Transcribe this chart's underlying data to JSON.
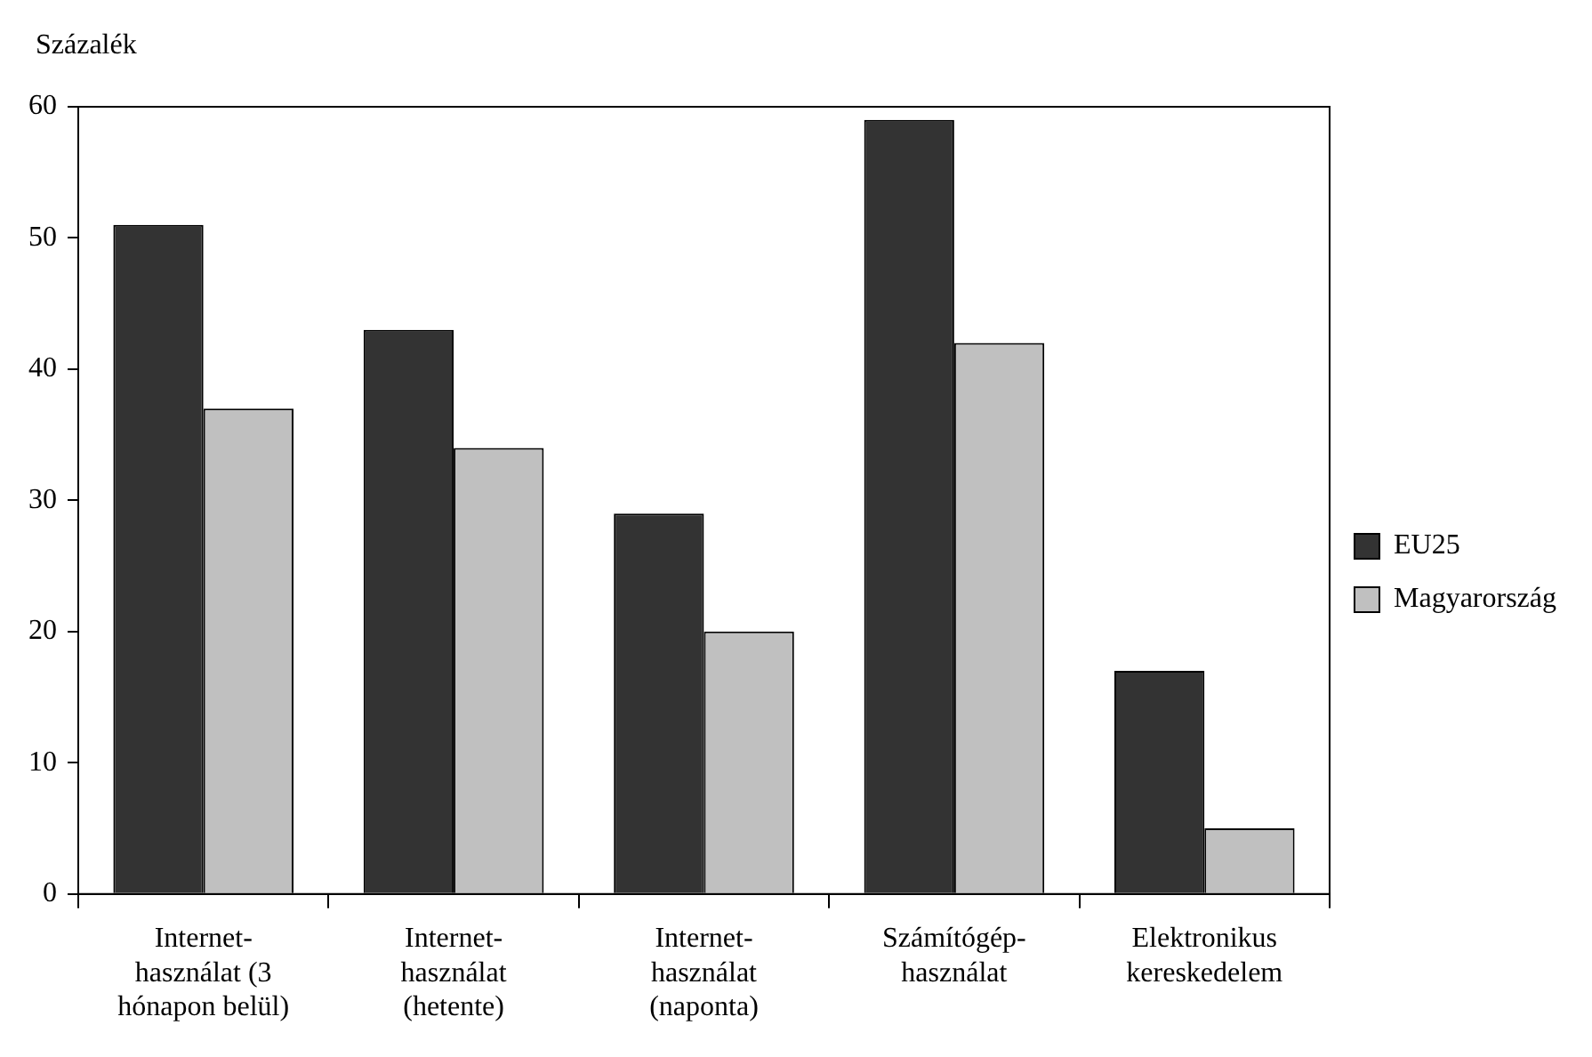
{
  "chart_data": {
    "type": "bar",
    "ylabel": "Százalék",
    "categories": [
      "Internet-használat (3 hónapon belül)",
      "Internet-használat (hetente)",
      "Internet-használat (naponta)",
      "Számítógép-használat",
      "Elektronikus kereskedelem"
    ],
    "series": [
      {
        "name": "EU25",
        "color": "#333333",
        "values": [
          51,
          43,
          29,
          59,
          17
        ]
      },
      {
        "name": "Magyarország",
        "color": "#c0c0c0",
        "values": [
          37,
          34,
          20,
          42,
          5
        ]
      }
    ],
    "ylim": [
      0,
      60
    ],
    "yticks": [
      0,
      10,
      20,
      30,
      40,
      50,
      60
    ],
    "grid": false,
    "legend": "right"
  }
}
